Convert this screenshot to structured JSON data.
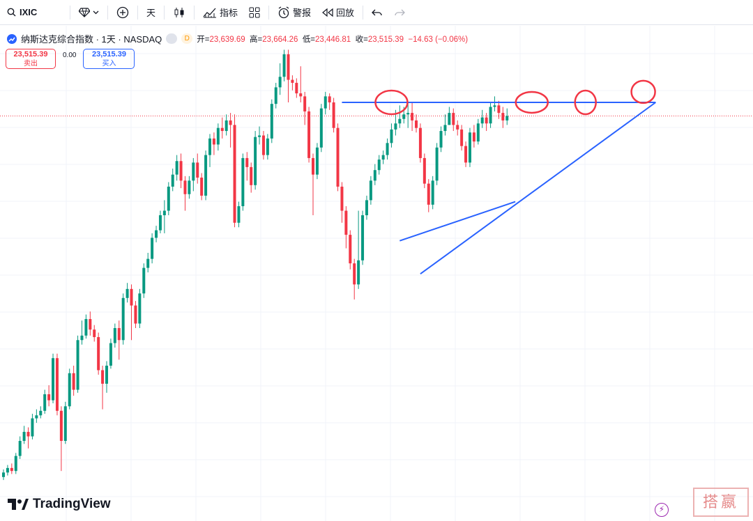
{
  "toolbar": {
    "symbol": "IXIC",
    "interval": "天",
    "indicators": "指标",
    "alert": "警报",
    "replay": "回放"
  },
  "legend": {
    "title": "纳斯达克综合指数 · 1天 · NASDAQ",
    "badge": "D",
    "open_label": "开=",
    "open": "23,639.69",
    "high_label": "高=",
    "high": "23,664.26",
    "low_label": "低=",
    "low": "23,446.81",
    "close_label": "收=",
    "close": "23,515.39",
    "change": "−14.63 (−0.06%)"
  },
  "trade": {
    "sell_price": "23,515.39",
    "sell_label": "卖出",
    "spread": "0.00",
    "buy_price": "23,515.39",
    "buy_label": "买入"
  },
  "brand": {
    "name": "TradingView"
  },
  "stamp": {
    "text": "搭嬴"
  },
  "colors": {
    "up": "#089981",
    "down": "#f23645",
    "trendline": "#2962ff",
    "annotation": "#f23645"
  },
  "chart_data": {
    "type": "candlestick",
    "series": [
      {
        "o": 2,
        "c": 8,
        "h": 12,
        "l": -2
      },
      {
        "o": 8,
        "c": 14,
        "h": 18,
        "l": 4
      },
      {
        "o": 14,
        "c": 10,
        "h": 20,
        "l": 6
      },
      {
        "o": 10,
        "c": 30,
        "h": 34,
        "l": 6
      },
      {
        "o": 30,
        "c": 50,
        "h": 56,
        "l": 26
      },
      {
        "o": 50,
        "c": 62,
        "h": 70,
        "l": 46
      },
      {
        "o": 62,
        "c": 56,
        "h": 68,
        "l": 40
      },
      {
        "o": 56,
        "c": 80,
        "h": 86,
        "l": 52
      },
      {
        "o": 80,
        "c": 84,
        "h": 92,
        "l": 74
      },
      {
        "o": 84,
        "c": 90,
        "h": 96,
        "l": 80
      },
      {
        "o": 90,
        "c": 112,
        "h": 118,
        "l": 86
      },
      {
        "o": 112,
        "c": 104,
        "h": 124,
        "l": 96
      },
      {
        "o": 104,
        "c": 160,
        "h": 166,
        "l": 100
      },
      {
        "o": 160,
        "c": 90,
        "h": 166,
        "l": 84
      },
      {
        "o": 90,
        "c": 50,
        "h": 96,
        "l": 10
      },
      {
        "o": 50,
        "c": 96,
        "h": 102,
        "l": 46
      },
      {
        "o": 96,
        "c": 140,
        "h": 146,
        "l": 92
      },
      {
        "o": 140,
        "c": 118,
        "h": 150,
        "l": 110
      },
      {
        "o": 118,
        "c": 184,
        "h": 190,
        "l": 114
      },
      {
        "o": 184,
        "c": 190,
        "h": 210,
        "l": 178
      },
      {
        "o": 190,
        "c": 212,
        "h": 218,
        "l": 186
      },
      {
        "o": 212,
        "c": 198,
        "h": 222,
        "l": 190
      },
      {
        "o": 198,
        "c": 188,
        "h": 204,
        "l": 182
      },
      {
        "o": 188,
        "c": 144,
        "h": 194,
        "l": 138
      },
      {
        "o": 144,
        "c": 126,
        "h": 150,
        "l": 92
      },
      {
        "o": 126,
        "c": 150,
        "h": 156,
        "l": 114
      },
      {
        "o": 150,
        "c": 180,
        "h": 186,
        "l": 146
      },
      {
        "o": 180,
        "c": 200,
        "h": 206,
        "l": 174
      },
      {
        "o": 200,
        "c": 184,
        "h": 210,
        "l": 158
      },
      {
        "o": 184,
        "c": 240,
        "h": 246,
        "l": 178
      },
      {
        "o": 240,
        "c": 252,
        "h": 260,
        "l": 234
      },
      {
        "o": 252,
        "c": 230,
        "h": 258,
        "l": 184
      },
      {
        "o": 230,
        "c": 206,
        "h": 236,
        "l": 200
      },
      {
        "o": 206,
        "c": 246,
        "h": 252,
        "l": 200
      },
      {
        "o": 246,
        "c": 280,
        "h": 286,
        "l": 240
      },
      {
        "o": 280,
        "c": 292,
        "h": 300,
        "l": 274
      },
      {
        "o": 292,
        "c": 320,
        "h": 326,
        "l": 286
      },
      {
        "o": 320,
        "c": 330,
        "h": 336,
        "l": 314
      },
      {
        "o": 330,
        "c": 350,
        "h": 356,
        "l": 326
      },
      {
        "o": 350,
        "c": 356,
        "h": 370,
        "l": 326
      },
      {
        "o": 356,
        "c": 388,
        "h": 394,
        "l": 350
      },
      {
        "o": 388,
        "c": 404,
        "h": 412,
        "l": 382
      },
      {
        "o": 404,
        "c": 422,
        "h": 430,
        "l": 396
      },
      {
        "o": 422,
        "c": 396,
        "h": 432,
        "l": 386
      },
      {
        "o": 396,
        "c": 378,
        "h": 402,
        "l": 356
      },
      {
        "o": 378,
        "c": 396,
        "h": 402,
        "l": 372
      },
      {
        "o": 396,
        "c": 420,
        "h": 426,
        "l": 382
      },
      {
        "o": 420,
        "c": 400,
        "h": 432,
        "l": 392
      },
      {
        "o": 400,
        "c": 376,
        "h": 406,
        "l": 370
      },
      {
        "o": 376,
        "c": 430,
        "h": 436,
        "l": 370
      },
      {
        "o": 430,
        "c": 452,
        "h": 458,
        "l": 414
      },
      {
        "o": 452,
        "c": 444,
        "h": 460,
        "l": 430
      },
      {
        "o": 444,
        "c": 466,
        "h": 472,
        "l": 436
      },
      {
        "o": 466,
        "c": 462,
        "h": 480,
        "l": 452
      },
      {
        "o": 462,
        "c": 476,
        "h": 484,
        "l": 456
      },
      {
        "o": 476,
        "c": 470,
        "h": 486,
        "l": 440
      },
      {
        "o": 470,
        "c": 340,
        "h": 484,
        "l": 334
      },
      {
        "o": 340,
        "c": 362,
        "h": 368,
        "l": 334
      },
      {
        "o": 362,
        "c": 426,
        "h": 432,
        "l": 356
      },
      {
        "o": 426,
        "c": 414,
        "h": 434,
        "l": 396
      },
      {
        "o": 414,
        "c": 390,
        "h": 420,
        "l": 380
      },
      {
        "o": 390,
        "c": 454,
        "h": 462,
        "l": 384
      },
      {
        "o": 454,
        "c": 456,
        "h": 468,
        "l": 444
      },
      {
        "o": 456,
        "c": 430,
        "h": 462,
        "l": 424
      },
      {
        "o": 430,
        "c": 452,
        "h": 458,
        "l": 424
      },
      {
        "o": 452,
        "c": 498,
        "h": 504,
        "l": 446
      },
      {
        "o": 498,
        "c": 520,
        "h": 526,
        "l": 492
      },
      {
        "o": 520,
        "c": 534,
        "h": 552,
        "l": 510
      },
      {
        "o": 534,
        "c": 564,
        "h": 570,
        "l": 528
      },
      {
        "o": 564,
        "c": 530,
        "h": 570,
        "l": 500
      },
      {
        "o": 530,
        "c": 526,
        "h": 536,
        "l": 516
      },
      {
        "o": 526,
        "c": 512,
        "h": 532,
        "l": 506
      },
      {
        "o": 512,
        "c": 508,
        "h": 548,
        "l": 500
      },
      {
        "o": 508,
        "c": 488,
        "h": 514,
        "l": 470
      },
      {
        "o": 488,
        "c": 426,
        "h": 494,
        "l": 420
      },
      {
        "o": 426,
        "c": 404,
        "h": 432,
        "l": 350
      },
      {
        "o": 404,
        "c": 440,
        "h": 446,
        "l": 398
      },
      {
        "o": 440,
        "c": 492,
        "h": 498,
        "l": 434
      },
      {
        "o": 492,
        "c": 508,
        "h": 514,
        "l": 484
      },
      {
        "o": 508,
        "c": 500,
        "h": 512,
        "l": 490
      },
      {
        "o": 500,
        "c": 466,
        "h": 506,
        "l": 460
      },
      {
        "o": 466,
        "c": 388,
        "h": 472,
        "l": 382
      },
      {
        "o": 388,
        "c": 356,
        "h": 394,
        "l": 340
      },
      {
        "o": 356,
        "c": 324,
        "h": 362,
        "l": 306
      },
      {
        "o": 324,
        "c": 286,
        "h": 330,
        "l": 278
      },
      {
        "o": 286,
        "c": 258,
        "h": 292,
        "l": 238
      },
      {
        "o": 258,
        "c": 290,
        "h": 356,
        "l": 252
      },
      {
        "o": 290,
        "c": 350,
        "h": 356,
        "l": 284
      },
      {
        "o": 350,
        "c": 370,
        "h": 376,
        "l": 344
      },
      {
        "o": 370,
        "c": 396,
        "h": 402,
        "l": 364
      },
      {
        "o": 396,
        "c": 410,
        "h": 418,
        "l": 390
      },
      {
        "o": 410,
        "c": 424,
        "h": 430,
        "l": 404
      },
      {
        "o": 424,
        "c": 430,
        "h": 436,
        "l": 418
      },
      {
        "o": 430,
        "c": 446,
        "h": 452,
        "l": 424
      },
      {
        "o": 446,
        "c": 464,
        "h": 472,
        "l": 440
      },
      {
        "o": 464,
        "c": 472,
        "h": 490,
        "l": 456
      },
      {
        "o": 472,
        "c": 478,
        "h": 496,
        "l": 466
      },
      {
        "o": 478,
        "c": 484,
        "h": 494,
        "l": 472
      },
      {
        "o": 484,
        "c": 486,
        "h": 500,
        "l": 466
      },
      {
        "o": 486,
        "c": 476,
        "h": 500,
        "l": 462
      },
      {
        "o": 476,
        "c": 466,
        "h": 484,
        "l": 460
      },
      {
        "o": 466,
        "c": 426,
        "h": 472,
        "l": 420
      },
      {
        "o": 426,
        "c": 392,
        "h": 432,
        "l": 386
      },
      {
        "o": 392,
        "c": 364,
        "h": 398,
        "l": 354
      },
      {
        "o": 364,
        "c": 396,
        "h": 402,
        "l": 358
      },
      {
        "o": 396,
        "c": 440,
        "h": 446,
        "l": 390
      },
      {
        "o": 440,
        "c": 462,
        "h": 468,
        "l": 434
      },
      {
        "o": 462,
        "c": 470,
        "h": 484,
        "l": 456
      },
      {
        "o": 470,
        "c": 486,
        "h": 494,
        "l": 476
      },
      {
        "o": 486,
        "c": 470,
        "h": 492,
        "l": 462
      },
      {
        "o": 470,
        "c": 464,
        "h": 476,
        "l": 456
      },
      {
        "o": 464,
        "c": 442,
        "h": 470,
        "l": 436
      },
      {
        "o": 442,
        "c": 420,
        "h": 448,
        "l": 414
      },
      {
        "o": 420,
        "c": 460,
        "h": 466,
        "l": 414
      },
      {
        "o": 460,
        "c": 448,
        "h": 470,
        "l": 440
      },
      {
        "o": 448,
        "c": 472,
        "h": 478,
        "l": 444
      },
      {
        "o": 472,
        "c": 480,
        "h": 490,
        "l": 466
      },
      {
        "o": 480,
        "c": 472,
        "h": 486,
        "l": 462
      },
      {
        "o": 472,
        "c": 494,
        "h": 500,
        "l": 466
      },
      {
        "o": 494,
        "c": 496,
        "h": 508,
        "l": 488
      },
      {
        "o": 496,
        "c": 486,
        "h": 502,
        "l": 478
      },
      {
        "o": 486,
        "c": 476,
        "h": 494,
        "l": 466
      },
      {
        "o": 476,
        "c": 482,
        "h": 492,
        "l": 470
      }
    ],
    "trendlines": [
      {
        "kind": "resistance",
        "points": [
          [
            82,
            500
          ],
          [
            158,
            500
          ]
        ]
      },
      {
        "kind": "support",
        "points": [
          [
            101,
            272
          ],
          [
            158,
            500
          ]
        ]
      },
      {
        "kind": "support",
        "points": [
          [
            96,
            316
          ],
          [
            124,
            368
          ]
        ]
      }
    ],
    "annotations": [
      "circle",
      "circle",
      "circle",
      "circle"
    ],
    "price_line": 482
  }
}
